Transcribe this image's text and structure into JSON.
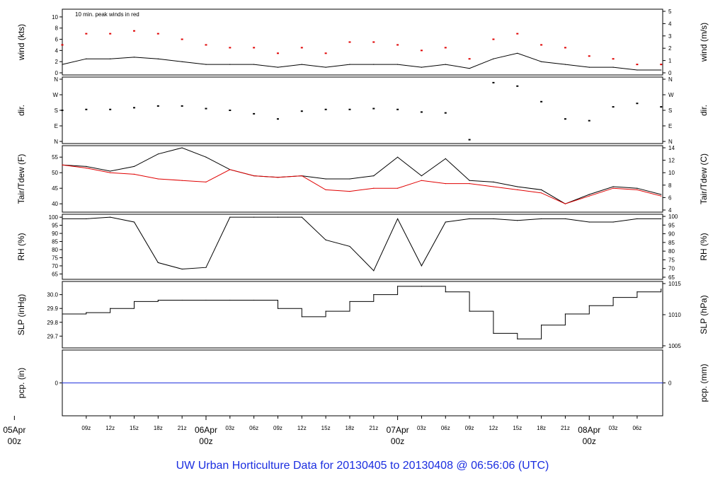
{
  "footer_title": "UW Urban Horticulture Data for 20130405  to  20130408 @ 06:56:06  (UTC)",
  "colors": {
    "red": "#e00000",
    "blue": "#2233dd",
    "black": "#000000"
  },
  "chart_data": {
    "type": "line",
    "time_axis": {
      "start": "2013-04-05T06:00Z",
      "end": "2013-04-08T06:56Z",
      "hour_ticks": [
        "09z",
        "12z",
        "15z",
        "18z",
        "21z",
        "03z",
        "06z",
        "09z",
        "12z",
        "15z",
        "18z",
        "21z",
        "03z",
        "06z",
        "09z",
        "12z",
        "15z",
        "18z",
        "21z",
        "03z",
        "06z"
      ],
      "day_labels": [
        {
          "date": "05Apr",
          "hour": "00z"
        },
        {
          "date": "06Apr",
          "hour": "00z"
        },
        {
          "date": "07Apr",
          "hour": "00z"
        },
        {
          "date": "08Apr",
          "hour": "00z"
        }
      ]
    },
    "panels": [
      {
        "id": "wind",
        "ylabel_left": "wind (kts)",
        "ylabel_right": "wind (m/s)",
        "left_ticks": [
          "0",
          "2",
          "4",
          "6",
          "8",
          "10"
        ],
        "right_ticks": [
          "0",
          "1",
          "2",
          "3",
          "4",
          "5"
        ],
        "ylim": [
          0,
          11
        ],
        "annotation": "10 min. peak winds in red",
        "series": [
          {
            "label": "wind",
            "color": "black",
            "hours": [
              0,
              3,
              6,
              9,
              12,
              15,
              18,
              21,
              24,
              27,
              30,
              33,
              36,
              39,
              42,
              45,
              48,
              51,
              54,
              57,
              60,
              63,
              66,
              69,
              72,
              75
            ],
            "values": [
              1.5,
              2.5,
              2.5,
              2.8,
              2.5,
              2.0,
              1.5,
              1.5,
              1.5,
              1.0,
              1.5,
              1.0,
              1.5,
              1.5,
              1.5,
              1.0,
              1.5,
              0.8,
              2.5,
              3.5,
              2.0,
              1.5,
              1.0,
              1.0,
              0.5,
              0.5
            ]
          },
          {
            "label": "10 min. peak winds in red",
            "color": "red",
            "hours": [
              0,
              3,
              6,
              9,
              12,
              15,
              18,
              21,
              24,
              27,
              30,
              33,
              36,
              39,
              42,
              45,
              48,
              51,
              54,
              57,
              60,
              63,
              66,
              69,
              72,
              75
            ],
            "values": [
              5,
              7,
              7,
              7.5,
              7,
              6,
              5,
              4.5,
              4.5,
              3.5,
              4.5,
              3.5,
              5.5,
              5.5,
              5,
              4,
              4.5,
              2.5,
              6,
              7,
              5,
              4.5,
              3,
              2.5,
              1.5,
              1.5
            ]
          }
        ]
      },
      {
        "id": "dir",
        "ylabel_left": "dir.",
        "ylabel_right": "dir.",
        "left_ticks": [
          "N",
          "E",
          "S",
          "W",
          "N"
        ],
        "right_ticks": [
          "N",
          "E",
          "S",
          "W",
          "N"
        ],
        "ylim": [
          0,
          360
        ],
        "series": [
          {
            "label": "direction",
            "color": "black",
            "hours": [
              0,
              3,
              6,
              9,
              12,
              15,
              18,
              21,
              24,
              27,
              30,
              33,
              36,
              39,
              42,
              45,
              48,
              51,
              54,
              57,
              60,
              63,
              66,
              69,
              72,
              75
            ],
            "values": [
              180,
              185,
              185,
              195,
              205,
              205,
              190,
              180,
              160,
              130,
              175,
              185,
              185,
              190,
              185,
              170,
              165,
              10,
              340,
              320,
              230,
              130,
              120,
              200,
              220,
              200
            ]
          }
        ]
      },
      {
        "id": "temp",
        "ylabel_left": "Tair/Tdew (F)",
        "ylabel_right": "Tair/Tdew (C)",
        "left_ticks": [
          "40",
          "45",
          "50",
          "55"
        ],
        "right_ticks": [
          "4",
          "6",
          "8",
          "10",
          "12",
          "14"
        ],
        "ylim": [
          38,
          58
        ],
        "series": [
          {
            "label": "Tair",
            "color": "black",
            "hours": [
              0,
              3,
              6,
              9,
              12,
              15,
              18,
              21,
              24,
              27,
              30,
              33,
              36,
              39,
              42,
              45,
              48,
              51,
              54,
              57,
              60,
              63,
              66,
              69,
              72,
              75
            ],
            "values": [
              52.5,
              52,
              50.5,
              52,
              56,
              58,
              55,
              51,
              49,
              48.5,
              49,
              48,
              48,
              49,
              55,
              49,
              54.5,
              47.5,
              47,
              45.5,
              44.5,
              40,
              43,
              45.5,
              45,
              43
            ]
          },
          {
            "label": "Tdew",
            "color": "red",
            "hours": [
              0,
              3,
              6,
              9,
              12,
              15,
              18,
              21,
              24,
              27,
              30,
              33,
              36,
              39,
              42,
              45,
              48,
              51,
              54,
              57,
              60,
              63,
              66,
              69,
              72,
              75
            ],
            "values": [
              52.5,
              51.5,
              50,
              49.5,
              48,
              47.5,
              47,
              51,
              49,
              48.5,
              49,
              44.5,
              44,
              45,
              45,
              47.5,
              46.5,
              46.5,
              45.5,
              44.5,
              43.5,
              40,
              42.5,
              45,
              44.5,
              42.5
            ]
          }
        ]
      },
      {
        "id": "rh",
        "ylabel_left": "RH (%)",
        "ylabel_right": "RH (%)",
        "left_ticks": [
          "65",
          "70",
          "75",
          "80",
          "85",
          "90",
          "95",
          "100"
        ],
        "right_ticks": [
          "65",
          "70",
          "75",
          "80",
          "85",
          "90",
          "95",
          "100"
        ],
        "ylim": [
          63,
          100.5
        ],
        "series": [
          {
            "label": "RH",
            "color": "black",
            "hours": [
              0,
              3,
              6,
              9,
              12,
              15,
              18,
              21,
              24,
              27,
              30,
              33,
              36,
              39,
              42,
              45,
              48,
              51,
              54,
              57,
              60,
              63,
              66,
              69,
              72,
              75
            ],
            "values": [
              99,
              99,
              100,
              97,
              72,
              68,
              69,
              100,
              100,
              100,
              100,
              86,
              82,
              67,
              99,
              70,
              97,
              99,
              99,
              98,
              99,
              99,
              97,
              97,
              99,
              99
            ]
          }
        ]
      },
      {
        "id": "slp",
        "ylabel_left": "SLP (inHg)",
        "ylabel_right": "SLP (hPa)",
        "left_ticks": [
          "29.7",
          "29.8",
          "29.9",
          "30.0"
        ],
        "right_ticks": [
          "1005",
          "1010",
          "1015"
        ],
        "ylim": [
          29.63,
          30.08
        ],
        "series": [
          {
            "label": "SLP",
            "color": "black",
            "hours": [
              0,
              3,
              6,
              9,
              12,
              15,
              18,
              21,
              24,
              27,
              30,
              33,
              36,
              39,
              42,
              45,
              48,
              51,
              54,
              57,
              60,
              63,
              66,
              69,
              72,
              75
            ],
            "values": [
              29.86,
              29.87,
              29.9,
              29.95,
              29.96,
              29.96,
              29.96,
              29.96,
              29.96,
              29.9,
              29.84,
              29.88,
              29.95,
              30.0,
              30.06,
              30.06,
              30.02,
              29.88,
              29.72,
              29.68,
              29.78,
              29.86,
              29.92,
              29.98,
              30.02,
              30.04
            ]
          }
        ]
      },
      {
        "id": "pcp",
        "ylabel_left": "pcp. (in)",
        "ylabel_right": "pcp. (mm)",
        "left_ticks": [
          "0"
        ],
        "right_ticks": [
          "0"
        ],
        "ylim": [
          -1,
          1
        ],
        "series": [
          {
            "label": "precipitation",
            "color": "blue",
            "hours": [
              0,
              75.2
            ],
            "values": [
              0,
              0
            ]
          }
        ]
      }
    ]
  }
}
